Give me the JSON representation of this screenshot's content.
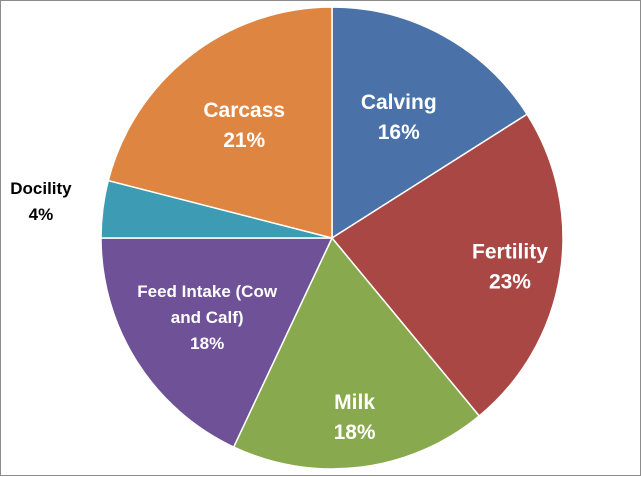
{
  "chart_data": {
    "type": "pie",
    "title": "",
    "slices": [
      {
        "label": "Calving",
        "value": 16,
        "display": "16%",
        "color": "#4A72A8",
        "label_color": "#ffffff"
      },
      {
        "label": "Fertility",
        "value": 23,
        "display": "23%",
        "color": "#A94745",
        "label_color": "#ffffff"
      },
      {
        "label": "Milk",
        "value": 18,
        "display": "18%",
        "color": "#89A94E",
        "label_color": "#ffffff"
      },
      {
        "label": "Feed Intake (Cow and Calf)",
        "value": 18,
        "display": "18%",
        "color": "#6E5196",
        "label_color": "#ffffff"
      },
      {
        "label": "Docility",
        "value": 4,
        "display": "4%",
        "color": "#3D9CB4",
        "label_color": "#000000"
      },
      {
        "label": "Carcass",
        "value": 21,
        "display": "21%",
        "color": "#DE8641",
        "label_color": "#ffffff"
      }
    ],
    "legend": "none",
    "start_angle_deg": 0,
    "direction": "clockwise"
  }
}
